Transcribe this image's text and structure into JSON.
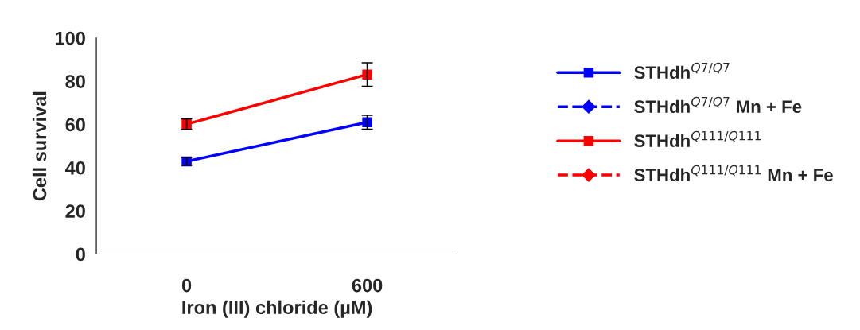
{
  "chart_data": {
    "type": "line",
    "xlabel": "Iron (III) chloride (µM)",
    "ylabel": "Cell survival",
    "categories": [
      "0",
      "600"
    ],
    "ylim": [
      0,
      100
    ],
    "yticks": [
      0,
      20,
      40,
      60,
      80,
      100
    ],
    "grid": false,
    "legend": "right",
    "series": [
      {
        "name": "STHdh$^{Q7/Q7}$",
        "color": "#0000ff",
        "marker": "square",
        "line_style": "solid",
        "values": [
          42.9,
          61.0
        ],
        "errors": [
          1.8,
          3.2
        ]
      },
      {
        "name": "STHdh$^{Q7/Q7}$ Mn + Fe",
        "color": "#0000ff",
        "marker": "diamond",
        "line_style": "dashed",
        "values": [
          null,
          null
        ]
      },
      {
        "name": "STHdh$^{Q111/Q111}$",
        "color": "#ff0000",
        "marker": "square",
        "line_style": "solid",
        "values": [
          60.1,
          83.1
        ],
        "errors": [
          2.4,
          5.4
        ]
      },
      {
        "name": "STHdh$^{Q111/Q111}$ Mn + Fe",
        "color": "#ff0000",
        "marker": "diamond",
        "line_style": "dashed",
        "values": [
          null,
          null
        ]
      }
    ]
  }
}
